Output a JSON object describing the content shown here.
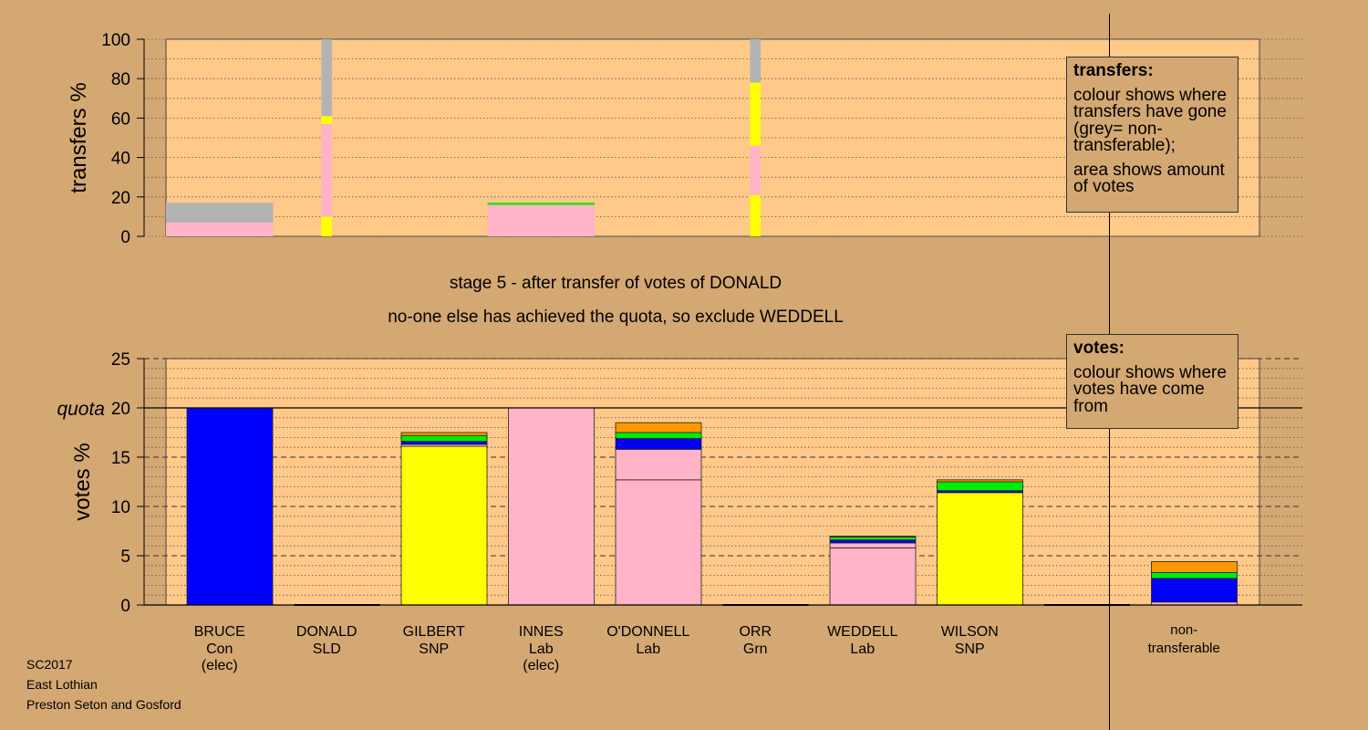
{
  "colors": {
    "background": "#d4a873",
    "plot": "#ffc98a",
    "Con": "#0000ff",
    "SNP": "#ffff00",
    "Lab": "#ffb3c6",
    "SLD": "#ff9900",
    "Grn": "#00ee00",
    "nontransferable": "#b3b3b3"
  },
  "stage_title": "stage 5 - after transfer of votes of DONALD",
  "stage_subtitle": "no-one else has achieved the quota, so exclude WEDDELL",
  "footer": {
    "line1": "SC2017",
    "line2": "East Lothian",
    "line3": "Preston Seton and Gosford"
  },
  "legend_transfers": {
    "title": "transfers:",
    "para1": "colour shows where transfers have gone (grey= non-transferable);",
    "para2": "area shows amount of votes"
  },
  "legend_votes": {
    "title": "votes:",
    "para1": "colour shows where votes have come from"
  },
  "chart_data": [
    {
      "type": "bar",
      "name": "transfers",
      "ylabel": "transfers %",
      "ylim": [
        0,
        100
      ],
      "yticks": [
        0,
        20,
        40,
        60,
        80,
        100
      ],
      "columns": [
        {
          "x": 0,
          "width": 1.0,
          "segments": [
            {
              "party": "Lab",
              "from": 0,
              "to": 7
            },
            {
              "party": "nontransferable",
              "from": 7,
              "to": 17
            }
          ]
        },
        {
          "x": 1,
          "width": 0.1,
          "segments": [
            {
              "party": "SNP",
              "from": 0,
              "to": 10
            },
            {
              "party": "Lab",
              "from": 10,
              "to": 57
            },
            {
              "party": "SNP",
              "from": 57,
              "to": 61
            },
            {
              "party": "nontransferable",
              "from": 61,
              "to": 100
            }
          ]
        },
        {
          "x": 3,
          "width": 1.0,
          "segments": [
            {
              "party": "Lab",
              "from": 0,
              "to": 16
            },
            {
              "party": "Grn",
              "from": 16,
              "to": 17
            }
          ]
        },
        {
          "x": 5,
          "width": 0.1,
          "segments": [
            {
              "party": "SNP",
              "from": 0,
              "to": 21
            },
            {
              "party": "Lab",
              "from": 21,
              "to": 46
            },
            {
              "party": "SNP",
              "from": 46,
              "to": 78
            },
            {
              "party": "nontransferable",
              "from": 78,
              "to": 100
            }
          ]
        }
      ]
    },
    {
      "type": "bar",
      "name": "votes",
      "ylabel": "votes %",
      "ylim": [
        0,
        25
      ],
      "yticks": [
        0,
        5,
        10,
        15,
        20,
        25
      ],
      "quota": 20,
      "quota_label": "quota",
      "categories": [
        {
          "name": "BRUCE",
          "party": "Con",
          "note": "(elec)"
        },
        {
          "name": "DONALD",
          "party": "SLD",
          "note": ""
        },
        {
          "name": "GILBERT",
          "party": "SNP",
          "note": ""
        },
        {
          "name": "INNES",
          "party": "Lab",
          "note": "(elec)"
        },
        {
          "name": "O'DONNELL",
          "party": "Lab",
          "note": ""
        },
        {
          "name": "ORR",
          "party": "Grn",
          "note": ""
        },
        {
          "name": "WEDDELL",
          "party": "Lab",
          "note": ""
        },
        {
          "name": "WILSON",
          "party": "SNP",
          "note": ""
        }
      ],
      "nontransferable_label": [
        "non-",
        "transferable"
      ],
      "stacks": [
        [
          {
            "party": "Con",
            "value": 20.0
          }
        ],
        [],
        [
          {
            "party": "SNP",
            "value": 16.1
          },
          {
            "party": "Lab",
            "value": 0.2
          },
          {
            "party": "Con",
            "value": 0.3
          },
          {
            "party": "Grn",
            "value": 0.6
          },
          {
            "party": "SLD",
            "value": 0.3
          }
        ],
        [
          {
            "party": "Lab",
            "value": 20.0
          }
        ],
        [
          {
            "party": "Lab",
            "value": 12.7
          },
          {
            "party": "Lab",
            "value": 3.1
          },
          {
            "party": "Con",
            "value": 1.1
          },
          {
            "party": "Grn",
            "value": 0.6
          },
          {
            "party": "SLD",
            "value": 1.0
          }
        ],
        [],
        [
          {
            "party": "Lab",
            "value": 5.8
          },
          {
            "party": "Lab",
            "value": 0.5
          },
          {
            "party": "Con",
            "value": 0.3
          },
          {
            "party": "Grn",
            "value": 0.3
          },
          {
            "party": "SLD",
            "value": 0.1
          }
        ],
        [
          {
            "party": "SNP",
            "value": 11.4
          },
          {
            "party": "Con",
            "value": 0.2
          },
          {
            "party": "Grn",
            "value": 0.9
          },
          {
            "party": "SLD",
            "value": 0.2
          }
        ]
      ],
      "nontransferable_stack": [
        {
          "party": "Lab",
          "value": 0.3
        },
        {
          "party": "Con",
          "value": 2.4
        },
        {
          "party": "Grn",
          "value": 0.6
        },
        {
          "party": "SLD",
          "value": 1.1
        }
      ]
    }
  ]
}
